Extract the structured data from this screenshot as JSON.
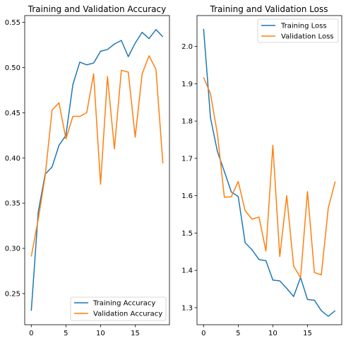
{
  "chart_data": [
    {
      "type": "line",
      "title": "Training and Validation Accuracy",
      "xlabel": "",
      "ylabel": "",
      "xlim": [
        -0.95,
        19.95
      ],
      "ylim": [
        0.2155,
        0.5575
      ],
      "xticks": [
        0,
        5,
        10,
        15
      ],
      "xtick_labels": [
        "0",
        "5",
        "10",
        "15"
      ],
      "yticks": [
        0.25,
        0.3,
        0.35,
        0.4,
        0.45,
        0.5,
        0.55
      ],
      "ytick_labels": [
        "0.25",
        "0.30",
        "0.35",
        "0.40",
        "0.45",
        "0.50",
        "0.55"
      ],
      "legend_position": "lower-right",
      "grid": false,
      "x": [
        0,
        1,
        2,
        3,
        4,
        5,
        6,
        7,
        8,
        9,
        10,
        11,
        12,
        13,
        14,
        15,
        16,
        17,
        18,
        19
      ],
      "series": [
        {
          "name": "Training Accuracy",
          "color": "#1f77b4",
          "values": [
            0.231,
            0.34,
            0.382,
            0.39,
            0.414,
            0.425,
            0.481,
            0.506,
            0.503,
            0.505,
            0.518,
            0.52,
            0.526,
            0.53,
            0.512,
            0.527,
            0.539,
            0.532,
            0.542,
            0.534
          ]
        },
        {
          "name": "Validation Accuracy",
          "color": "#ff7f0e",
          "values": [
            0.291,
            0.332,
            0.38,
            0.453,
            0.461,
            0.421,
            0.446,
            0.446,
            0.45,
            0.493,
            0.371,
            0.49,
            0.41,
            0.497,
            0.495,
            0.423,
            0.493,
            0.513,
            0.498,
            0.394
          ]
        }
      ]
    },
    {
      "type": "line",
      "title": "Training and Validation Loss",
      "xlabel": "",
      "ylabel": "",
      "xlim": [
        -0.95,
        19.95
      ],
      "ylim": [
        1.2544,
        2.0826
      ],
      "xticks": [
        0,
        5,
        10,
        15
      ],
      "xtick_labels": [
        "0",
        "5",
        "10",
        "15"
      ],
      "yticks": [
        1.3,
        1.4,
        1.5,
        1.6,
        1.7,
        1.8,
        1.9,
        2.0
      ],
      "ytick_labels": [
        "1.3",
        "1.4",
        "1.5",
        "1.6",
        "1.7",
        "1.8",
        "1.9",
        "2.0"
      ],
      "legend_position": "upper-right",
      "grid": false,
      "x": [
        0,
        1,
        2,
        3,
        4,
        5,
        6,
        7,
        8,
        9,
        10,
        11,
        12,
        13,
        14,
        15,
        16,
        17,
        18,
        19
      ],
      "series": [
        {
          "name": "Training Loss",
          "color": "#1f77b4",
          "values": [
            2.047,
            1.808,
            1.718,
            1.665,
            1.61,
            1.598,
            1.474,
            1.455,
            1.429,
            1.426,
            1.374,
            1.372,
            1.352,
            1.33,
            1.381,
            1.322,
            1.32,
            1.292,
            1.277,
            1.292
          ]
        },
        {
          "name": "Validation Loss",
          "color": "#ff7f0e",
          "values": [
            1.917,
            1.873,
            1.765,
            1.596,
            1.597,
            1.638,
            1.56,
            1.537,
            1.543,
            1.452,
            1.735,
            1.437,
            1.6,
            1.412,
            1.38,
            1.611,
            1.394,
            1.388,
            1.567,
            1.638
          ]
        }
      ]
    }
  ]
}
